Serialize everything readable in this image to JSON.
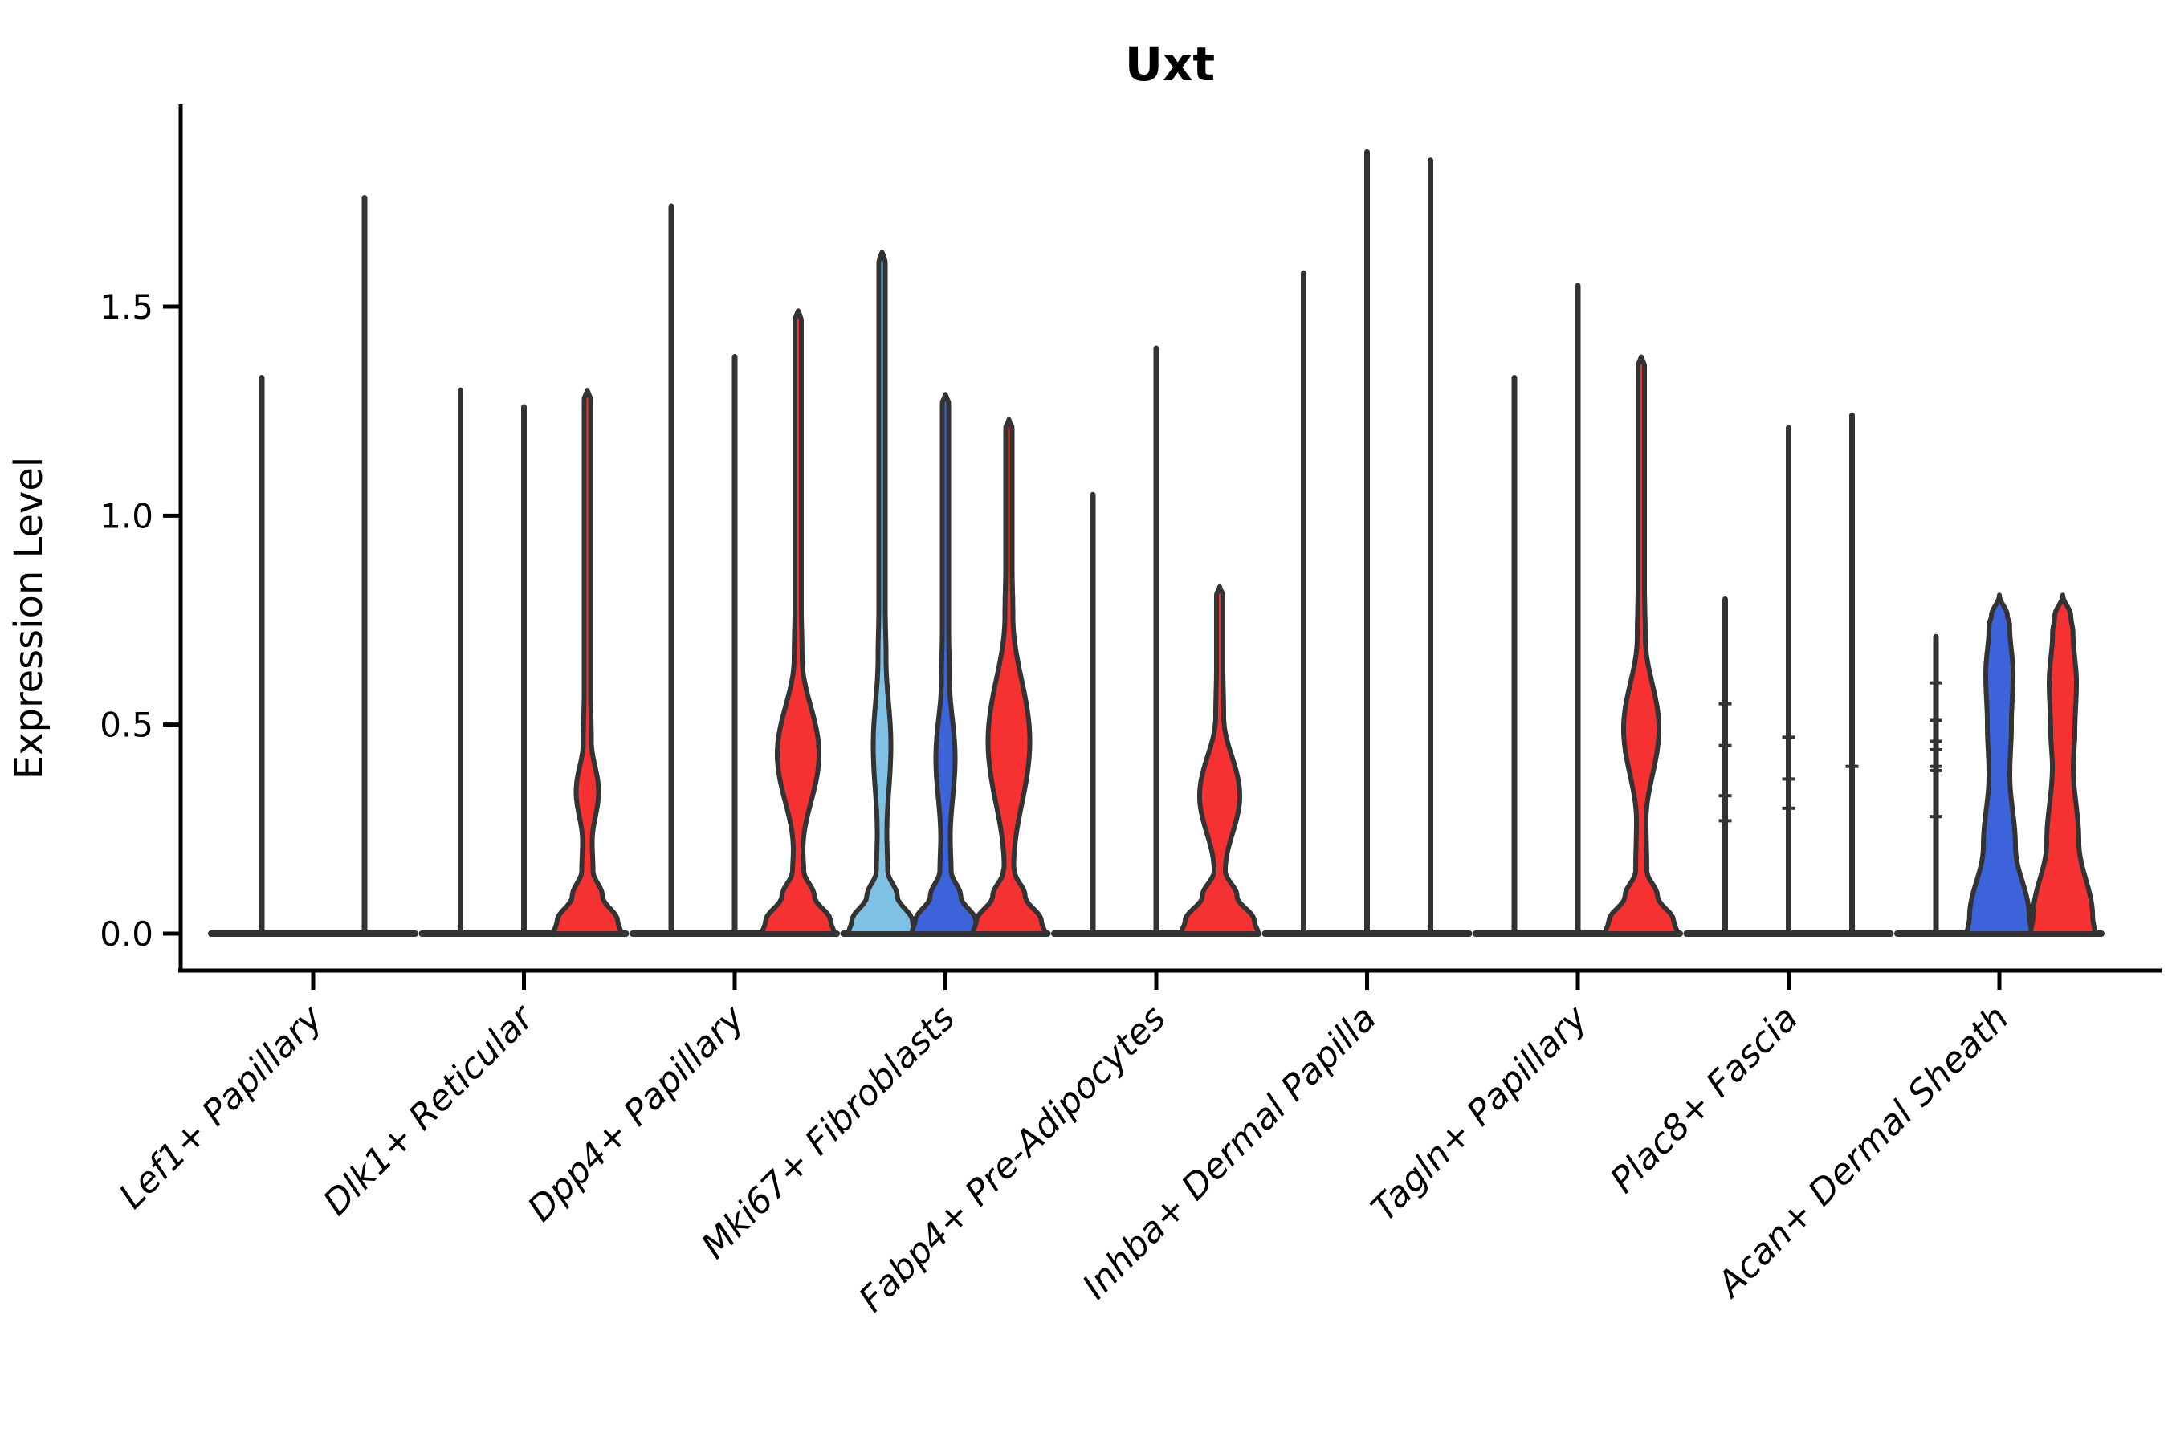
{
  "page": {
    "background": "#FFFFFF"
  },
  "chart_data": {
    "type": "violin",
    "title": "Uxt",
    "xlabel": "",
    "ylabel": "Expression Level",
    "yticks": [
      "0.0",
      "0.5",
      "1.0",
      "1.5"
    ],
    "ytick_values": [
      0,
      0.5,
      1.0,
      1.5
    ],
    "ylim": [
      0,
      1.98
    ],
    "grid": "off",
    "legend": "none",
    "palette": {
      "red": "#F53131",
      "blue": "#3D63DB",
      "lightblue": "#7FC2E6",
      "spike": "#333333",
      "axis": "#000000"
    },
    "categories": [
      "Lef1+ Papillary",
      "Dlk1+ Reticular",
      "Dpp4+ Papillary",
      "Mki67+ Fibroblasts",
      "Fabp4+ Pre-Adipocytes",
      "Inhba+ Dermal Papilla",
      "Tagln+ Papillary",
      "Plac8+ Fascia",
      "Acan+ Dermal Sheath"
    ],
    "groups": [
      {
        "category": "Lef1+ Papillary",
        "violins": [
          {
            "kind": "spike",
            "max": 1.33
          },
          {
            "kind": "spike",
            "max": 1.76
          }
        ]
      },
      {
        "category": "Dlk1+ Reticular",
        "violins": [
          {
            "kind": "spike",
            "max": 1.3
          },
          {
            "kind": "spike",
            "max": 1.26
          },
          {
            "kind": "violin",
            "max": 1.3,
            "fill": "red",
            "base_hw": 42,
            "bulge": {
              "center": 0.34,
              "span": 0.12,
              "hw": 14
            }
          }
        ]
      },
      {
        "category": "Dpp4+ Papillary",
        "violins": [
          {
            "kind": "spike",
            "max": 1.74
          },
          {
            "kind": "spike",
            "max": 1.38
          },
          {
            "kind": "violin",
            "max": 1.49,
            "fill": "red",
            "base_hw": 45,
            "bulge": {
              "center": 0.43,
              "span": 0.23,
              "hw": 26
            }
          }
        ]
      },
      {
        "category": "Mki67+ Fibroblasts",
        "violins": [
          {
            "kind": "violin",
            "max": 1.63,
            "fill": "lightblue",
            "base_hw": 42,
            "bulge": {
              "center": 0.45,
              "span": 0.21,
              "hw": 11
            }
          },
          {
            "kind": "violin",
            "max": 1.29,
            "fill": "blue",
            "base_hw": 42,
            "bulge": {
              "center": 0.42,
              "span": 0.19,
              "hw": 12
            }
          },
          {
            "kind": "violin",
            "max": 1.23,
            "fill": "red",
            "base_hw": 45,
            "bulge": {
              "center": 0.46,
              "span": 0.3,
              "hw": 26
            }
          }
        ]
      },
      {
        "category": "Fabp4+ Pre-Adipocytes",
        "violins": [
          {
            "kind": "spike",
            "max": 1.05
          },
          {
            "kind": "spike",
            "max": 1.4
          },
          {
            "kind": "violin",
            "max": 0.83,
            "fill": "red",
            "base_hw": 48,
            "bulge": {
              "center": 0.33,
              "span": 0.19,
              "hw": 25
            }
          }
        ]
      },
      {
        "category": "Inhba+ Dermal Papilla",
        "violins": [
          {
            "kind": "spike",
            "max": 1.58
          },
          {
            "kind": "spike",
            "max": 1.87
          },
          {
            "kind": "spike",
            "max": 1.85
          }
        ]
      },
      {
        "category": "Tagln+ Papillary",
        "violins": [
          {
            "kind": "spike",
            "max": 1.33
          },
          {
            "kind": "spike",
            "max": 1.55
          },
          {
            "kind": "violin",
            "max": 1.38,
            "fill": "red",
            "base_hw": 45,
            "bulge": {
              "center": 0.49,
              "span": 0.22,
              "hw": 22
            }
          }
        ]
      },
      {
        "category": "Plac8+ Fascia",
        "violins": [
          {
            "kind": "spike",
            "max": 0.8,
            "points": [
              0.55,
              0.45,
              0.33,
              0.27
            ]
          },
          {
            "kind": "spike",
            "max": 1.21,
            "points": [
              0.47,
              0.37,
              0.3
            ]
          },
          {
            "kind": "spike",
            "max": 1.24,
            "points": [
              0.4
            ]
          }
        ]
      },
      {
        "category": "Acan+ Dermal Sheath",
        "violins": [
          {
            "kind": "spike",
            "max": 0.71,
            "points": [
              0.6,
              0.51,
              0.46,
              0.44,
              0.4,
              0.39,
              0.28
            ]
          },
          {
            "kind": "wide",
            "max": 0.81,
            "fill": "blue",
            "base_hw": 40,
            "waist": {
              "at": 0.38,
              "hw": 13
            },
            "bulge": {
              "center": 0.62,
              "span": 0.12,
              "hw": 17
            }
          },
          {
            "kind": "wide",
            "max": 0.81,
            "fill": "red",
            "base_hw": 40,
            "waist": {
              "at": 0.4,
              "hw": 13
            },
            "bulge": {
              "center": 0.6,
              "span": 0.12,
              "hw": 17
            }
          }
        ]
      }
    ]
  }
}
